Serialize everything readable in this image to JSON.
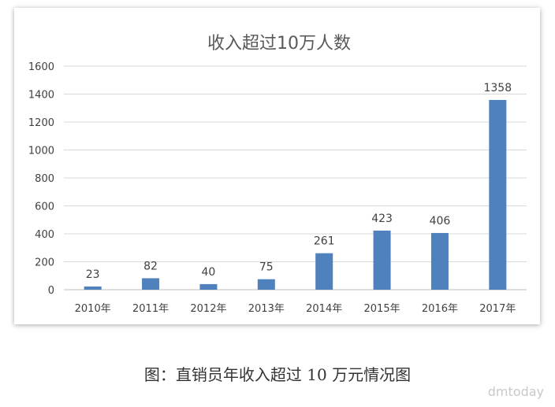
{
  "chart_data": {
    "type": "bar",
    "title": "收入超过10万人数",
    "categories": [
      "2010年",
      "2011年",
      "2012年",
      "2013年",
      "2014年",
      "2015年",
      "2016年",
      "2017年"
    ],
    "values": [
      23,
      82,
      40,
      75,
      261,
      423,
      406,
      1358
    ],
    "ylim": [
      0,
      1600
    ],
    "yticks": [
      0,
      200,
      400,
      600,
      800,
      1000,
      1200,
      1400,
      1600
    ],
    "xlabel": "",
    "ylabel": "",
    "grid": true,
    "bar_color": "#4f81bd"
  },
  "caption": "图：直销员年收入超过 10 万元情况图",
  "watermark": "dmtoday"
}
